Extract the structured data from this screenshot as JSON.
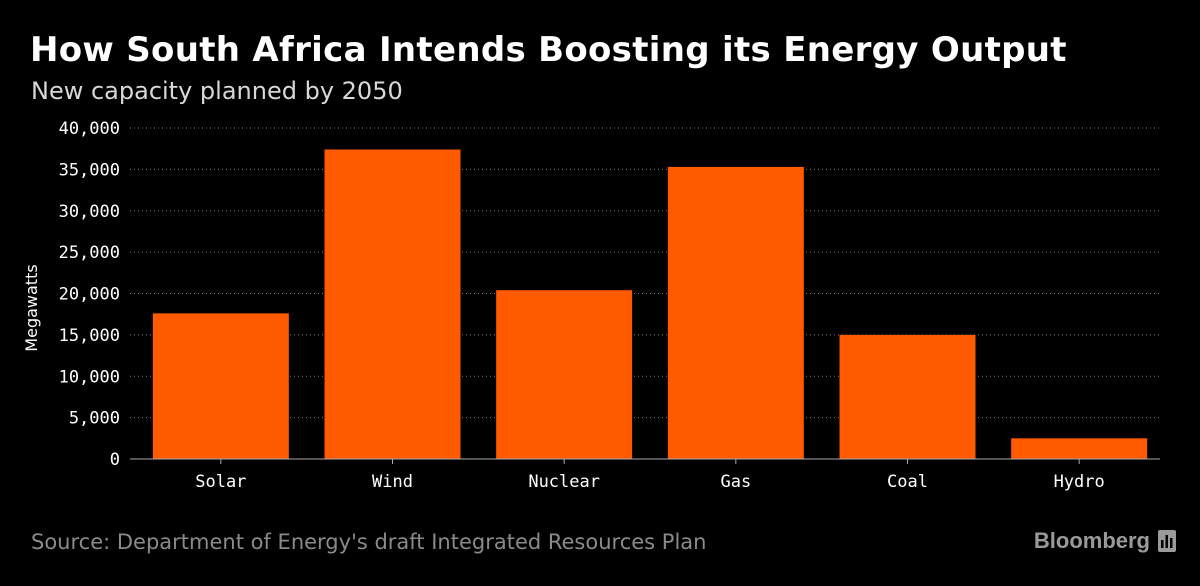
{
  "header": {
    "title": "How South Africa Intends Boosting its Energy Output",
    "subtitle": "New capacity planned by 2050"
  },
  "footer": {
    "source": "Source: Department of Energy's draft Integrated Resources Plan",
    "brand": "Bloomberg",
    "brand_icon": "bloomberg-terminal-icon"
  },
  "colors": {
    "background": "#000000",
    "bar": "#ff5a00",
    "grid": "#777777",
    "axis": "#aaaaaa"
  },
  "chart_data": {
    "type": "bar",
    "title": "How South Africa Intends Boosting its Energy Output",
    "subtitle": "New capacity planned by 2050",
    "categories": [
      "Solar",
      "Wind",
      "Nuclear",
      "Gas",
      "Coal",
      "Hydro"
    ],
    "values": [
      17600,
      37400,
      20400,
      35300,
      15000,
      2500
    ],
    "xlabel": "",
    "ylabel": "Megawatts",
    "ylim": [
      0,
      40000
    ],
    "yticks": [
      0,
      5000,
      10000,
      15000,
      20000,
      25000,
      30000,
      35000,
      40000
    ],
    "ytick_labels": [
      "0",
      "5,000",
      "10,000",
      "15,000",
      "20,000",
      "25,000",
      "30,000",
      "35,000",
      "40,000"
    ],
    "grid": true,
    "grid_style": "dotted",
    "legend": "none"
  }
}
